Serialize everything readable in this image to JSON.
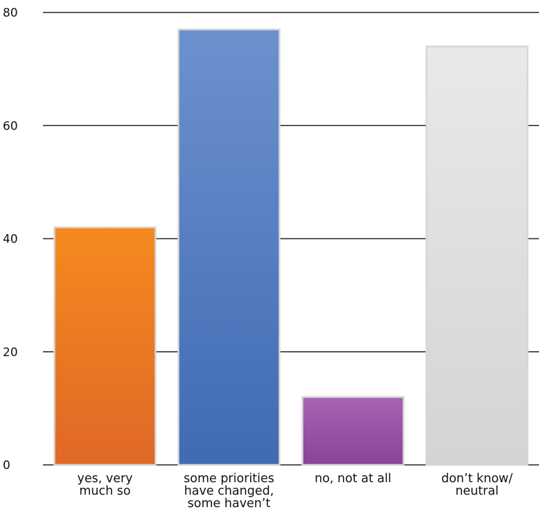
{
  "chart_data": {
    "type": "bar",
    "title": "",
    "xlabel": "",
    "ylabel": "",
    "ylim": [
      0,
      80
    ],
    "yticks": [
      0,
      20,
      40,
      60,
      80
    ],
    "grid": true,
    "categories": [
      [
        "yes, very",
        "much so"
      ],
      [
        "some priorities",
        "have changed,",
        "some haven’t"
      ],
      [
        "no, not at all"
      ],
      [
        "don’t know/",
        "neutral"
      ]
    ],
    "values": [
      42,
      77,
      12,
      74
    ],
    "colors": [
      [
        "#f58a1f",
        "#df6827"
      ],
      [
        "#6d91cf",
        "#3f6bb3"
      ],
      [
        "#a764b2",
        "#894398"
      ],
      [
        "#e8e9eb",
        "#d3d4d6"
      ]
    ]
  }
}
